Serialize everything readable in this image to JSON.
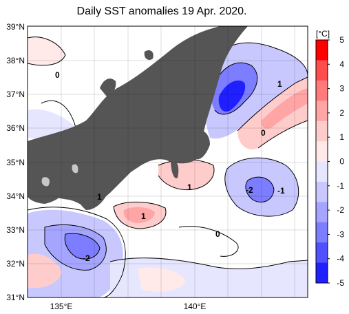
{
  "title": "Daily SST anomalies 19 Apr. 2020.",
  "lat_ticks": [
    "39°N",
    "38°N",
    "37°N",
    "36°N",
    "35°N",
    "34°N",
    "33°N",
    "32°N",
    "31°N"
  ],
  "lon_ticks": [
    "135°E",
    "140°E"
  ],
  "colorbar": {
    "unit": "[°C]",
    "ticks": [
      "5",
      "4",
      "3",
      "2",
      "1",
      "0",
      "-1",
      "-2",
      "-3",
      "-4",
      "-5"
    ],
    "colors": [
      "#ff0000",
      "#ff4d4d",
      "#ff7a7a",
      "#ffa5a5",
      "#ffcccc",
      "#ffe9e9",
      "#e6e6ff",
      "#c8c8ff",
      "#a5a5ff",
      "#7d7dff",
      "#5050ff",
      "#1f1fff"
    ]
  },
  "contour_labels": [
    "0",
    "1",
    "0",
    "1",
    "-2",
    "-1",
    "1",
    "1",
    "0",
    "-2"
  ],
  "colors": {
    "land": "#555555",
    "lake": "#c8c8c8",
    "border": "#000000"
  }
}
